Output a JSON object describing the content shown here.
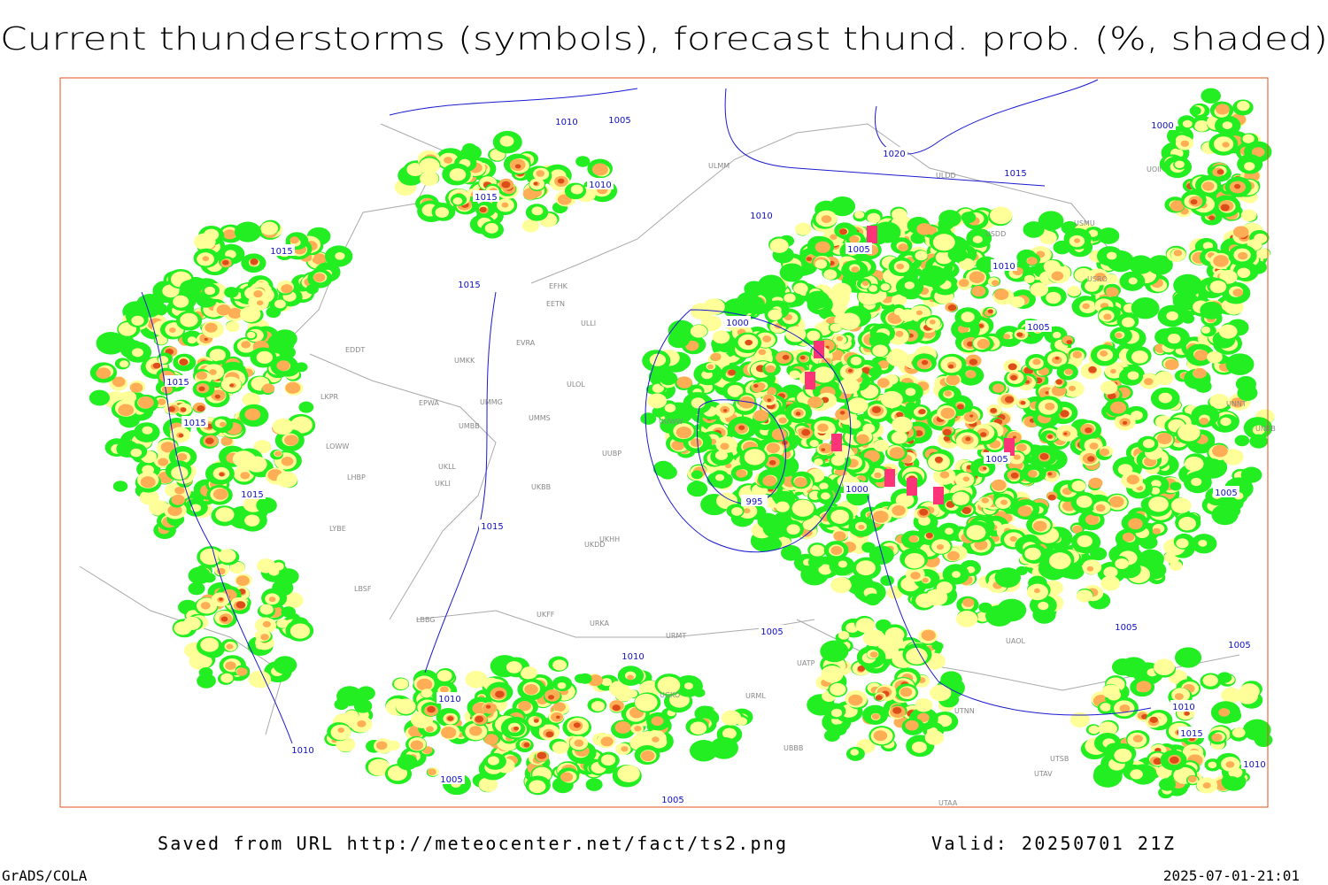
{
  "header": {
    "title": "Current thunderstorms (symbols), forecast thund. prob. (%, shaded)"
  },
  "isobar_labels": [
    1010,
    1005,
    1010,
    1015,
    1015,
    1015,
    1015,
    1015,
    1015,
    1015,
    1010,
    1000,
    995,
    1000,
    1005,
    1020,
    1015,
    1010,
    1005,
    1005,
    1005,
    1000,
    1005,
    1005,
    1010,
    1010,
    1010,
    1005,
    1005,
    1005,
    1010,
    1015,
    1010
  ],
  "stations": [
    "EDDT",
    "LKPR",
    "LOWW",
    "LHBP",
    "LYBE",
    "LBSF",
    "LBBG",
    "EPWA",
    "UMKK",
    "UMMG",
    "UMMS",
    "UMBB",
    "UKLL",
    "UKLI",
    "UKBB",
    "UKHH",
    "UKDD",
    "UKFF",
    "URKA",
    "URMT",
    "URML",
    "UGKO",
    "UBBB",
    "EFHK",
    "EETN",
    "EVRA",
    "ULLI",
    "ULOL",
    "UUWW",
    "UUBP",
    "ULMM",
    "ULDD",
    "USDD",
    "USMU",
    "USRO",
    "UNNT",
    "UNBB",
    "UAOL",
    "UTNN",
    "UTSB",
    "UTAV",
    "UTAA",
    "UATP",
    "UOII"
  ],
  "footer": {
    "source": "Saved from URL http://meteocenter.net/fact/ts2.png",
    "valid": "Valid: 20250701 21Z",
    "software": "GrADS/COLA",
    "timestamp": "2025-07-01-21:01"
  }
}
